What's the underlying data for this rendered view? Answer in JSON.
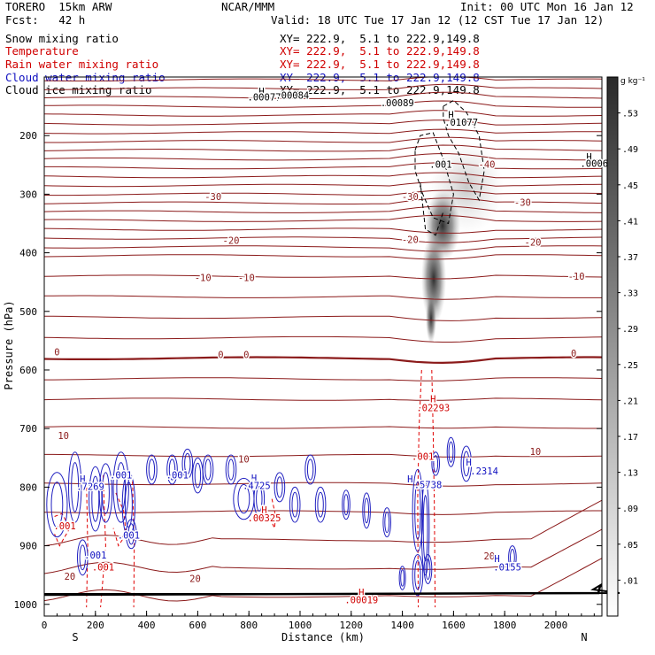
{
  "header": {
    "model": "TORERO  15km ARW",
    "org": "NCAR/MMM",
    "init": "Init: 00 UTC Mon 16 Jan 12",
    "fcst": "Fcst:   42 h",
    "valid": "Valid: 18 UTC Tue 17 Jan 12 (12 CST Tue 17 Jan 12)"
  },
  "fields": [
    {
      "name": "Snow mixing ratio",
      "xy": "XY= 222.9,  5.1 to 222.9,149.8",
      "color": "#000000"
    },
    {
      "name": "Temperature",
      "xy": "XY= 222.9,  5.1 to 222.9,149.8",
      "color": "#d00000"
    },
    {
      "name": "Rain water mixing ratio",
      "xy": "XY= 222.9,  5.1 to 222.9,149.8",
      "color": "#d00000"
    },
    {
      "name": "Cloud water mixing ratio",
      "xy": "XY= 222.9,  5.1 to 222.9,149.8",
      "color": "#1010c0"
    },
    {
      "name": "Cloud ice mixing ratio",
      "xy": "XY= 222.9,  5.1 to 222.9,149.8",
      "color": "#000000"
    }
  ],
  "chart_data": {
    "type": "cross-section contour",
    "xlabel": "Distance (km)",
    "ylabel": "Pressure (hPa)",
    "xlim": [
      0,
      2180
    ],
    "ylim": [
      1020,
      100
    ],
    "x_ticks": [
      0,
      200,
      400,
      600,
      800,
      1000,
      1200,
      1400,
      1600,
      1800,
      2000
    ],
    "y_ticks": [
      200,
      300,
      400,
      500,
      600,
      700,
      800,
      900,
      1000
    ],
    "left_end_label": "S",
    "right_end_label": "N",
    "colorbar": {
      "units": "g kg⁻¹",
      "levels": [
        ".01",
        ".05",
        ".09",
        ".13",
        ".17",
        ".21",
        ".25",
        ".29",
        ".33",
        ".37",
        ".41",
        ".45",
        ".49",
        ".53"
      ]
    },
    "temperature_labels": [
      {
        "x": 660,
        "p": 310,
        "text": "-30"
      },
      {
        "x": 1430,
        "p": 310,
        "text": "-30"
      },
      {
        "x": 1870,
        "p": 320,
        "text": "-30"
      },
      {
        "x": 1730,
        "p": 255,
        "text": "-40"
      },
      {
        "x": 730,
        "p": 385,
        "text": "-20"
      },
      {
        "x": 1430,
        "p": 383,
        "text": "-20"
      },
      {
        "x": 1910,
        "p": 388,
        "text": "-20"
      },
      {
        "x": 620,
        "p": 448,
        "text": "-10"
      },
      {
        "x": 790,
        "p": 448,
        "text": "-10"
      },
      {
        "x": 2080,
        "p": 446,
        "text": "-10"
      },
      {
        "x": 50,
        "p": 575,
        "text": "0"
      },
      {
        "x": 690,
        "p": 580,
        "text": "0"
      },
      {
        "x": 790,
        "p": 580,
        "text": "0"
      },
      {
        "x": 2070,
        "p": 577,
        "text": "0"
      },
      {
        "x": 75,
        "p": 718,
        "text": "10"
      },
      {
        "x": 780,
        "p": 758,
        "text": "10"
      },
      {
        "x": 1920,
        "p": 745,
        "text": "10"
      },
      {
        "x": 100,
        "p": 958,
        "text": "20"
      },
      {
        "x": 590,
        "p": 962,
        "text": "20"
      },
      {
        "x": 1740,
        "p": 923,
        "text": "20"
      }
    ],
    "rain_labels": [
      {
        "x": 1520,
        "p": 655,
        "text": "H"
      },
      {
        "x": 1520,
        "p": 670,
        "text": ".02293"
      },
      {
        "x": 1480,
        "p": 753,
        "text": ".001"
      },
      {
        "x": 860,
        "p": 845,
        "text": "H"
      },
      {
        "x": 860,
        "p": 858,
        "text": ".00325"
      },
      {
        "x": 80,
        "p": 872,
        "text": ".001"
      },
      {
        "x": 230,
        "p": 942,
        "text": ".001"
      },
      {
        "x": 1240,
        "p": 985,
        "text": "H"
      },
      {
        "x": 1240,
        "p": 998,
        "text": ".00019"
      }
    ],
    "cloud_water_labels": [
      {
        "x": 150,
        "p": 792,
        "text": "H"
      },
      {
        "x": 180,
        "p": 805,
        "text": ".7269"
      },
      {
        "x": 300,
        "p": 785,
        "text": ".001"
      },
      {
        "x": 520,
        "p": 785,
        "text": ".001"
      },
      {
        "x": 820,
        "p": 790,
        "text": "H"
      },
      {
        "x": 830,
        "p": 803,
        "text": ".4725"
      },
      {
        "x": 1430,
        "p": 792,
        "text": "H"
      },
      {
        "x": 1500,
        "p": 802,
        "text": ".5738"
      },
      {
        "x": 1660,
        "p": 763,
        "text": "H"
      },
      {
        "x": 1720,
        "p": 778,
        "text": ".2314"
      },
      {
        "x": 330,
        "p": 888,
        "text": ".001"
      },
      {
        "x": 200,
        "p": 922,
        "text": ".001"
      },
      {
        "x": 1770,
        "p": 928,
        "text": "H"
      },
      {
        "x": 1810,
        "p": 942,
        "text": ".0155"
      }
    ],
    "ice_labels": [
      {
        "x": 850,
        "p": 130,
        "text": "H"
      },
      {
        "x": 860,
        "p": 140,
        "text": ".00077"
      },
      {
        "x": 970,
        "p": 137,
        "text": ".00084"
      },
      {
        "x": 1380,
        "p": 150,
        "text": ".00089"
      },
      {
        "x": 1590,
        "p": 170,
        "text": "H"
      },
      {
        "x": 1630,
        "p": 183,
        "text": ".01077"
      },
      {
        "x": 1550,
        "p": 255,
        "text": ".001"
      },
      {
        "x": 2130,
        "p": 242,
        "text": "H"
      },
      {
        "x": 2150,
        "p": 253,
        "text": ".0006"
      }
    ]
  }
}
